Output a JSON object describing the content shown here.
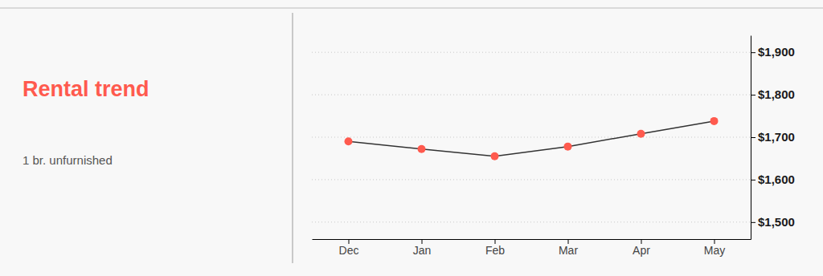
{
  "chart_data": {
    "type": "line",
    "title": "Rental trend",
    "subtitle": "1 br. unfurnished",
    "categories": [
      "Dec",
      "Jan",
      "Feb",
      "Mar",
      "Apr",
      "May"
    ],
    "values": [
      1690,
      1672,
      1655,
      1678,
      1708,
      1738
    ],
    "color": "#ff5a4e",
    "marker": "circle",
    "ylim": [
      1460,
      1940
    ],
    "yticks": [
      {
        "value": 1500,
        "label": "$1,500"
      },
      {
        "value": 1600,
        "label": "$1,600"
      },
      {
        "value": 1700,
        "label": "$1,700"
      },
      {
        "value": 1800,
        "label": "$1,800"
      },
      {
        "value": 1900,
        "label": "$1,900"
      }
    ],
    "grid": true
  }
}
